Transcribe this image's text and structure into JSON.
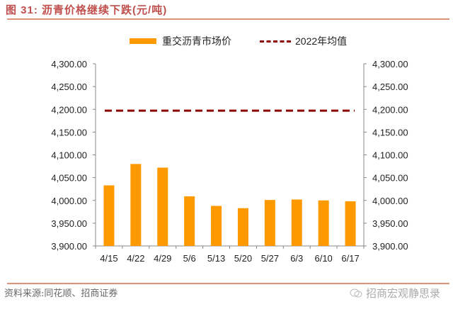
{
  "header": {
    "figure_label": "图 31:",
    "title": "沥青价格继续下跌(元/吨)"
  },
  "legend": {
    "series_bar": "重交沥青市场价",
    "series_line": "2022年均值"
  },
  "footer": {
    "source": "资料来源:同花顺、招商证券",
    "watermark": "招商宏观静思录"
  },
  "colors": {
    "bar": "#ff9900",
    "line": "#8b0000",
    "title": "#c0504d",
    "rule": "#d9957a"
  },
  "chart_data": {
    "type": "bar",
    "title": "沥青价格继续下跌(元/吨)",
    "xlabel": "",
    "ylabel": "",
    "categories": [
      "4/15",
      "4/22",
      "4/29",
      "5/6",
      "5/13",
      "5/20",
      "5/27",
      "6/3",
      "6/10",
      "6/17"
    ],
    "series": [
      {
        "name": "重交沥青市场价",
        "type": "bar",
        "values": [
          4033,
          4080,
          4072,
          4009,
          3988,
          3983,
          4001,
          4002,
          4000,
          3998
        ]
      },
      {
        "name": "2022年均值",
        "type": "line",
        "style": "dashed",
        "values": [
          4197,
          4197,
          4197,
          4197,
          4197,
          4197,
          4197,
          4197,
          4197,
          4197
        ]
      }
    ],
    "ylim": [
      3900,
      4300
    ],
    "yticks": [
      "4,300.00",
      "4,250.00",
      "4,200.00",
      "4,150.00",
      "4,100.00",
      "4,050.00",
      "4,000.00",
      "3,950.00",
      "3,900.00"
    ],
    "secondary_yticks": [
      "4,300.00",
      "4,250.00",
      "4,200.00",
      "4,150.00",
      "4,100.00",
      "4,050.00",
      "4,000.00",
      "3,950.00",
      "3,900.00"
    ],
    "grid": false,
    "legend_position": "top"
  }
}
